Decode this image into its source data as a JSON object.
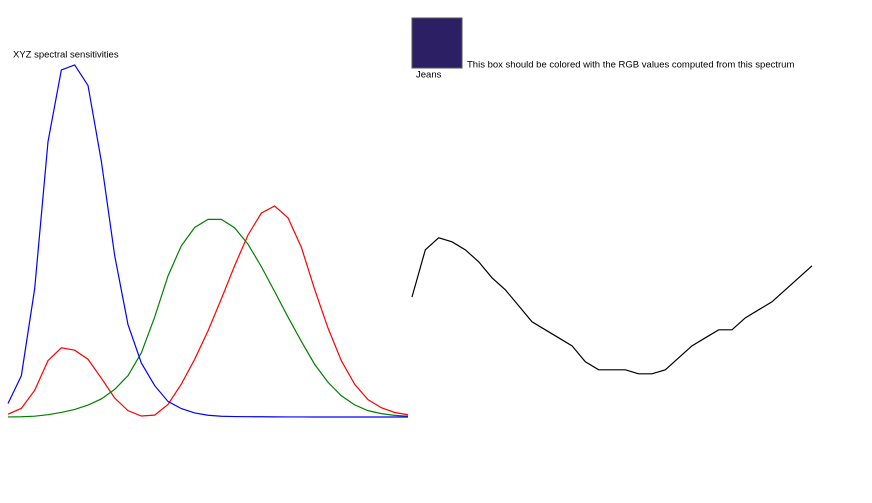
{
  "chart_data": [
    {
      "type": "line",
      "title": "XYZ spectral sensitivities",
      "x": [
        400,
        410,
        420,
        430,
        440,
        450,
        460,
        470,
        480,
        490,
        500,
        510,
        520,
        530,
        540,
        550,
        560,
        570,
        580,
        590,
        600,
        610,
        620,
        630,
        640,
        650,
        660,
        670,
        680,
        690,
        700
      ],
      "xlim": [
        400,
        700
      ],
      "ylim": [
        0,
        1.772
      ],
      "series": [
        {
          "color": "#ff0000",
          "values": [
            0.01431,
            0.04351,
            0.13438,
            0.2839,
            0.34828,
            0.3362,
            0.2908,
            0.19536,
            0.09564,
            0.03201,
            0.0049,
            0.0093,
            0.06327,
            0.1655,
            0.2904,
            0.43345,
            0.5945,
            0.7621,
            0.9163,
            1.0263,
            1.0622,
            1.0026,
            0.85445,
            0.6424,
            0.4479,
            0.2835,
            0.1649,
            0.0874,
            0.04677,
            0.0227,
            0.01136
          ]
        },
        {
          "color": "#008000",
          "values": [
            0.000396,
            0.00121,
            0.004,
            0.0116,
            0.023,
            0.038,
            0.06,
            0.09098,
            0.13902,
            0.20802,
            0.323,
            0.503,
            0.71,
            0.862,
            0.954,
            0.99495,
            0.995,
            0.952,
            0.87,
            0.757,
            0.631,
            0.503,
            0.381,
            0.265,
            0.175,
            0.107,
            0.061,
            0.032,
            0.017,
            0.00821,
            0.0041
          ]
        },
        {
          "color": "#0000ff",
          "values": [
            0.06785,
            0.2074,
            0.6456,
            1.3856,
            1.74706,
            1.77211,
            1.6692,
            1.28764,
            0.81295,
            0.46518,
            0.272,
            0.1582,
            0.07825,
            0.04216,
            0.0203,
            0.00875,
            0.0039,
            0.0021,
            0.00165,
            0.0011,
            0.0008,
            0.00034,
            0.00019,
            5e-05,
            2e-05,
            0,
            0,
            0,
            0,
            0,
            0
          ]
        }
      ]
    },
    {
      "type": "line",
      "annotation": "This box should be colored with the RGB values computed from this spectrum",
      "swatch_color": "#2c1f63",
      "x": [
        400,
        410,
        420,
        430,
        440,
        450,
        460,
        470,
        480,
        490,
        500,
        510,
        520,
        530,
        540,
        550,
        560,
        570,
        580,
        590,
        600,
        610,
        620,
        630,
        640,
        650,
        660,
        670,
        680,
        690,
        700
      ],
      "xlim": [
        400,
        700
      ],
      "ylim": [
        0,
        1
      ],
      "series": [
        {
          "name": "Jeans",
          "color": "#000000",
          "values": [
            0.3,
            0.418,
            0.448,
            0.438,
            0.418,
            0.388,
            0.348,
            0.318,
            0.278,
            0.238,
            0.218,
            0.198,
            0.178,
            0.138,
            0.118,
            0.118,
            0.118,
            0.108,
            0.108,
            0.118,
            0.148,
            0.178,
            0.198,
            0.218,
            0.218,
            0.248,
            0.268,
            0.288,
            0.318,
            0.348,
            0.378
          ]
        }
      ]
    }
  ]
}
